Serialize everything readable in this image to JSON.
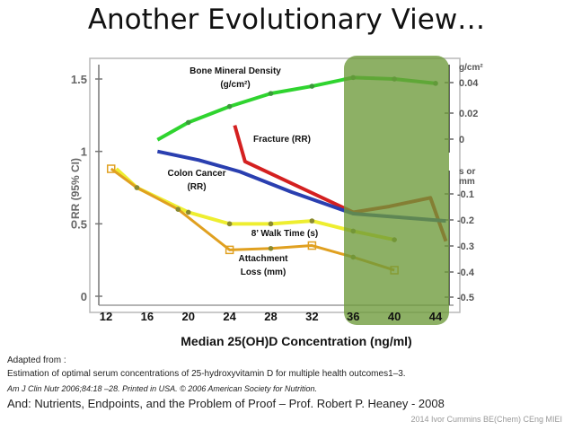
{
  "slide": {
    "title": "Another Evolutionary View…",
    "adapted_from": "Adapted from :",
    "source_line": "Estimation of optimal serum concentrations of 25-hydroxyvitamin D for multiple health outcomes1–3.",
    "citation": "Am J Clin Nutr 2006;84:18 –28. Printed in USA. © 2006 American Society for Nutrition.",
    "and_line": "And: Nutrients, Endpoints, and the Problem of Proof – Prof. Robert P. Heaney - 2008",
    "credit": "2014 Ivor Cummins BE(Chem) CEng MIEI"
  },
  "colors": {
    "bmd": "#2fd42f",
    "fracture": "#d42020",
    "colon": "#2a3fb0",
    "walk": "#eeee30",
    "attach": "#e0a020",
    "highlight": "#6d9a3a"
  },
  "chart_data": {
    "type": "line",
    "xlabel": "Median 25(OH)D Concentration (ng/ml)",
    "ylabel": "RR (95% CI)",
    "x_ticks": [
      12,
      16,
      20,
      24,
      28,
      32,
      36,
      40,
      44
    ],
    "xlim": [
      10,
      46
    ],
    "y_ticks": [
      "0",
      "0.5",
      "1",
      "1.5"
    ],
    "ylim": [
      0,
      1.6
    ],
    "right_axis_bmd": {
      "unit": "g/cm²",
      "ticks": [
        "0",
        "0.02",
        "0.04"
      ]
    },
    "right_axis_walk": {
      "unit": "s or mm",
      "ticks": [
        "-0.1",
        "-0.2",
        "-0.3",
        "-0.4",
        "-0.5"
      ]
    },
    "highlight_range": [
      36,
      44
    ],
    "series": [
      {
        "name": "Bone Mineral Density (g/cm²)",
        "x": [
          17,
          20,
          24,
          28,
          32,
          36,
          40,
          44
        ],
        "y": [
          1.08,
          1.2,
          1.31,
          1.4,
          1.45,
          1.51,
          1.5,
          1.47
        ]
      },
      {
        "name": "Fracture (RR)",
        "x": [
          24.5,
          25.5,
          36,
          39.5,
          43.5,
          45
        ],
        "y": [
          1.18,
          0.93,
          0.58,
          0.62,
          0.68,
          0.38
        ]
      },
      {
        "name": "Colon Cancer (RR)",
        "x": [
          17,
          21,
          25,
          30,
          36,
          45
        ],
        "y": [
          1.0,
          0.94,
          0.86,
          0.72,
          0.57,
          0.52
        ]
      },
      {
        "name": "8' Walk Time (s)",
        "x": [
          13,
          15,
          20,
          24,
          28,
          32,
          36,
          40
        ],
        "y": [
          0.88,
          0.75,
          0.58,
          0.5,
          0.5,
          0.52,
          0.45,
          0.39
        ]
      },
      {
        "name": "Attachment Loss (mm)",
        "x": [
          12.5,
          15,
          19,
          24,
          28,
          32,
          36,
          40
        ],
        "y": [
          0.88,
          0.75,
          0.6,
          0.32,
          0.33,
          0.35,
          0.27,
          0.18
        ]
      }
    ],
    "annotations": {
      "bmd": [
        "Bone Mineral Density",
        "(g/cm²)"
      ],
      "fracture": [
        "Fracture (RR)"
      ],
      "colon": [
        "Colon Cancer",
        "(RR)"
      ],
      "walk": [
        "8’ Walk Time (s)"
      ],
      "attach": [
        "Attachment",
        "Loss (mm)"
      ]
    }
  }
}
